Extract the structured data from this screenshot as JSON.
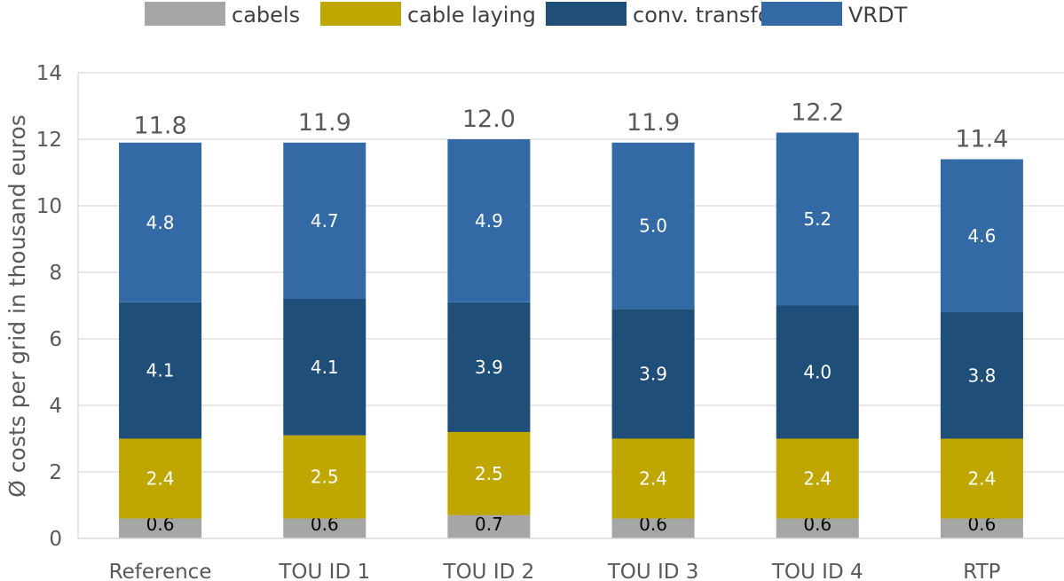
{
  "chart_data": {
    "type": "bar",
    "stacked": true,
    "categories": [
      "Reference",
      "TOU ID 1",
      "TOU ID 2",
      "TOU ID 3",
      "TOU ID 4",
      "RTP"
    ],
    "series": [
      {
        "name": "cabels",
        "color": "#a6a6a6",
        "label_color": "#000000",
        "values": [
          0.6,
          0.6,
          0.7,
          0.6,
          0.6,
          0.6
        ]
      },
      {
        "name": "cable laying",
        "color": "#bfa600",
        "label_color": "#ffffff",
        "values": [
          2.4,
          2.5,
          2.5,
          2.4,
          2.4,
          2.4
        ]
      },
      {
        "name": "conv. transformers",
        "color": "#1f4e79",
        "label_color": "#ffffff",
        "values": [
          4.1,
          4.1,
          3.9,
          3.9,
          4.0,
          3.8
        ]
      },
      {
        "name": "VRDT",
        "color": "#336aa6",
        "label_color": "#ffffff",
        "values": [
          4.8,
          4.7,
          4.9,
          5.0,
          5.2,
          4.6
        ]
      }
    ],
    "totals": [
      11.8,
      11.9,
      12.0,
      11.9,
      12.2,
      11.4
    ],
    "title": "",
    "xlabel": "",
    "ylabel": "Ø costs per grid in thousand euros",
    "ylim": [
      0,
      14
    ],
    "yticks": [
      0,
      2,
      4,
      6,
      8,
      10,
      12,
      14
    ],
    "grid": true,
    "legend_position": "top"
  }
}
